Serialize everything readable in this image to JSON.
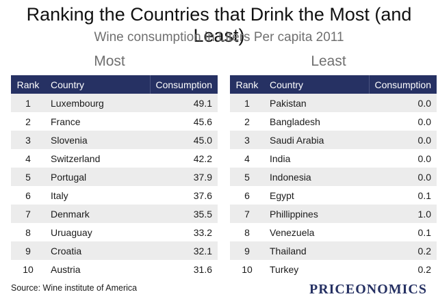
{
  "title": "Ranking the Countries that Drink the Most (and Least)",
  "subtitle": "Wine consumption in Liters Per capita 2011",
  "source": "Source: Wine institute of America",
  "brand": "PRICEONOMICS",
  "colors": {
    "header_bg": "#263163",
    "row_stripe": "#ececec"
  },
  "chart_data": [
    {
      "type": "table",
      "title": "Most",
      "columns": [
        "Rank",
        "Country",
        "Consumption"
      ],
      "rows": [
        [
          "1",
          "Luxembourg",
          "49.1"
        ],
        [
          "2",
          "France",
          "45.6"
        ],
        [
          "3",
          "Slovenia",
          "45.0"
        ],
        [
          "4",
          "Switzerland",
          "42.2"
        ],
        [
          "5",
          "Portugal",
          "37.9"
        ],
        [
          "6",
          "Italy",
          "37.6"
        ],
        [
          "7",
          "Denmark",
          "35.5"
        ],
        [
          "8",
          "Uruaguay",
          "33.2"
        ],
        [
          "9",
          "Croatia",
          "32.1"
        ],
        [
          "10",
          "Austria",
          "31.6"
        ]
      ]
    },
    {
      "type": "table",
      "title": "Least",
      "columns": [
        "Rank",
        "Country",
        "Consumption"
      ],
      "rows": [
        [
          "1",
          "Pakistan",
          "0.0"
        ],
        [
          "2",
          "Bangladesh",
          "0.0"
        ],
        [
          "3",
          "Saudi Arabia",
          "0.0"
        ],
        [
          "4",
          "India",
          "0.0"
        ],
        [
          "5",
          "Indonesia",
          "0.0"
        ],
        [
          "6",
          "Egypt",
          "0.1"
        ],
        [
          "7",
          "Phillippines",
          "1.0"
        ],
        [
          "8",
          "Venezuela",
          "0.1"
        ],
        [
          "9",
          "Thailand",
          "0.2"
        ],
        [
          "10",
          "Turkey",
          "0.2"
        ]
      ]
    }
  ]
}
